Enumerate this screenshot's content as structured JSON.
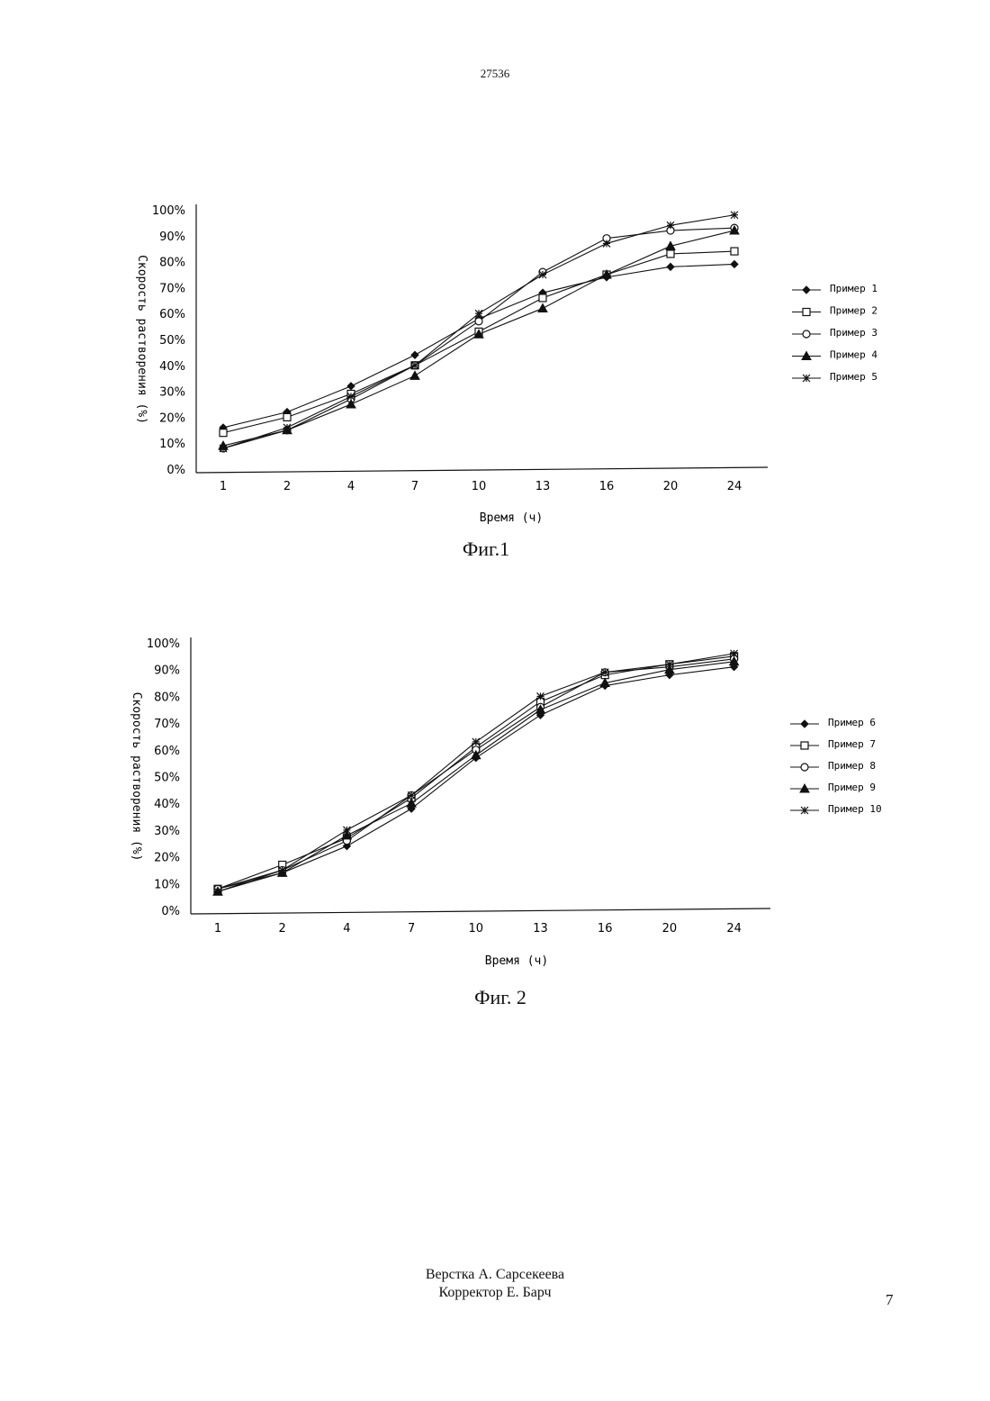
{
  "header": {
    "doc_number": "27536"
  },
  "footer": {
    "layout_credit": "Верстка А. Сарсекеева",
    "proof_credit": "Корректор Е. Барч",
    "page_number": "7"
  },
  "chart_data": [
    {
      "type": "line",
      "caption": "Фиг.1",
      "xlabel": "Время (ч)",
      "ylabel": "Скорость растворения (%)",
      "categories": [
        "1",
        "2",
        "4",
        "7",
        "10",
        "13",
        "16",
        "20",
        "24"
      ],
      "yticks": [
        "0%",
        "10%",
        "20%",
        "30%",
        "40%",
        "50%",
        "60%",
        "70%",
        "80%",
        "90%",
        "100%"
      ],
      "ylim": [
        0,
        100
      ],
      "grid": false,
      "legend_position": "right",
      "series": [
        {
          "name": "Пример 1",
          "marker": "diamond",
          "values": [
            16,
            22,
            32,
            44,
            58,
            68,
            74,
            78,
            79
          ]
        },
        {
          "name": "Пример 2",
          "marker": "square",
          "values": [
            14,
            20,
            29,
            40,
            53,
            66,
            75,
            83,
            84
          ]
        },
        {
          "name": "Пример 3",
          "marker": "circle",
          "values": [
            8,
            15,
            27,
            40,
            57,
            76,
            89,
            92,
            93
          ]
        },
        {
          "name": "Пример 4",
          "marker": "triangle",
          "values": [
            9,
            15,
            25,
            36,
            52,
            62,
            75,
            86,
            92
          ]
        },
        {
          "name": "Пример 5",
          "marker": "asterisk",
          "values": [
            8,
            16,
            28,
            40,
            60,
            75,
            87,
            94,
            98
          ]
        }
      ]
    },
    {
      "type": "line",
      "caption": "Фиг. 2",
      "xlabel": "Время (ч)",
      "ylabel": "Скорость растворения (%)",
      "categories": [
        "1",
        "2",
        "4",
        "7",
        "10",
        "13",
        "16",
        "20",
        "24"
      ],
      "yticks": [
        "0%",
        "10%",
        "20%",
        "30%",
        "40%",
        "50%",
        "60%",
        "70%",
        "80%",
        "90%",
        "100%"
      ],
      "ylim": [
        0,
        100
      ],
      "grid": false,
      "legend_position": "right",
      "series": [
        {
          "name": "Пример 6",
          "marker": "diamond",
          "values": [
            8,
            14,
            24,
            38,
            57,
            73,
            84,
            88,
            91
          ]
        },
        {
          "name": "Пример 7",
          "marker": "square",
          "values": [
            8,
            17,
            27,
            42,
            61,
            78,
            88,
            92,
            95
          ]
        },
        {
          "name": "Пример 8",
          "marker": "circle",
          "values": [
            8,
            15,
            26,
            43,
            60,
            76,
            89,
            91,
            94
          ]
        },
        {
          "name": "Пример 9",
          "marker": "triangle",
          "values": [
            7,
            14,
            28,
            40,
            58,
            75,
            85,
            90,
            93
          ]
        },
        {
          "name": "Пример 10",
          "marker": "asterisk",
          "values": [
            7,
            15,
            30,
            43,
            63,
            80,
            89,
            92,
            96
          ]
        }
      ]
    }
  ]
}
